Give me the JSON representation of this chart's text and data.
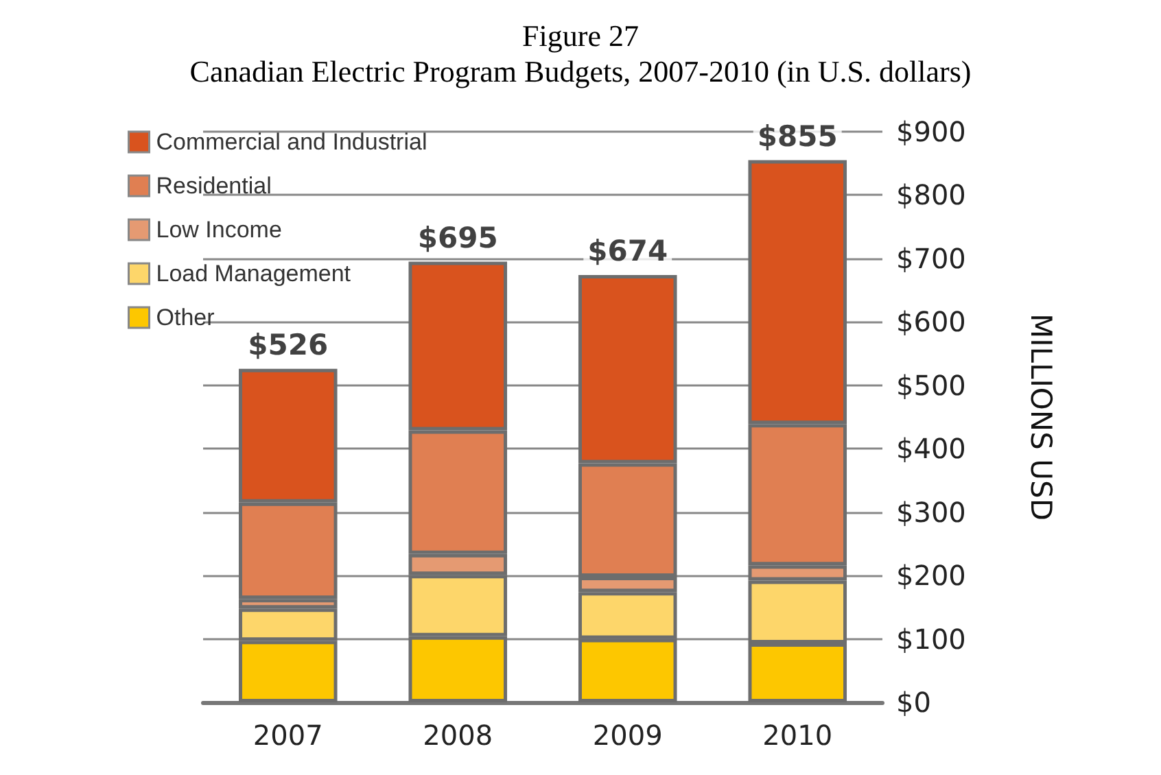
{
  "chart_data": {
    "type": "bar",
    "title": "Figure 27",
    "subtitle": "Canadian Electric Program Budgets, 2007-2010 (in U.S. dollars)",
    "ylabel": "MILLIONS USD",
    "categories": [
      "2007",
      "2008",
      "2009",
      "2010"
    ],
    "stacked": true,
    "series": [
      {
        "name": "Other",
        "color": "#fdc700",
        "values": [
          97,
          104,
          100,
          93
        ]
      },
      {
        "name": "Load Management",
        "color": "#fdd66a",
        "values": [
          51,
          97,
          74,
          99
        ]
      },
      {
        "name": "Low Income",
        "color": "#e59a72",
        "values": [
          15,
          33,
          24,
          24
        ]
      },
      {
        "name": "Residential",
        "color": "#e07f52",
        "values": [
          152,
          195,
          179,
          223
        ]
      },
      {
        "name": "Commercial and Industrial",
        "color": "#d9531e",
        "values": [
          211,
          266,
          297,
          416
        ]
      }
    ],
    "totals": [
      "$526",
      "$695",
      "$674",
      "$855"
    ],
    "ylim": [
      0,
      900
    ],
    "yticks": [
      {
        "value": 0,
        "label": "$0"
      },
      {
        "value": 100,
        "label": "$100"
      },
      {
        "value": 200,
        "label": "$200"
      },
      {
        "value": 300,
        "label": "$300"
      },
      {
        "value": 400,
        "label": "$400"
      },
      {
        "value": 500,
        "label": "$500"
      },
      {
        "value": 600,
        "label": "$600"
      },
      {
        "value": 700,
        "label": "$700"
      },
      {
        "value": 800,
        "label": "$800"
      },
      {
        "value": 900,
        "label": "$900"
      }
    ],
    "grid": "y",
    "legend": "top left"
  }
}
